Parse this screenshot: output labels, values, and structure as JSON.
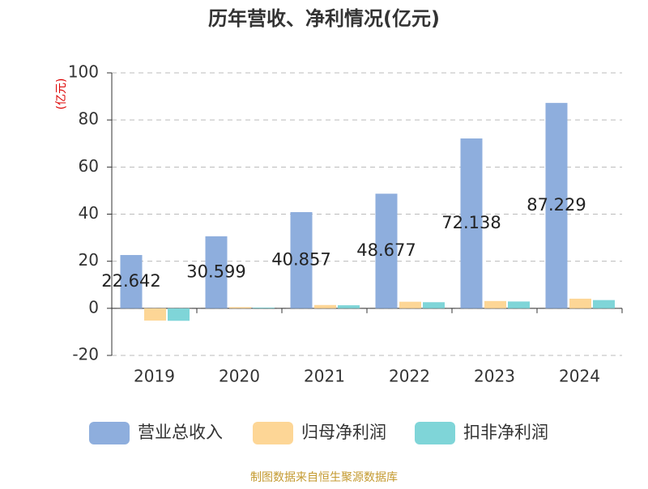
{
  "chart_data": {
    "type": "bar",
    "title": "历年营收、净利情况(亿元)",
    "y_axis_label": "(亿元)",
    "categories": [
      "2019",
      "2020",
      "2021",
      "2022",
      "2023",
      "2024"
    ],
    "series": [
      {
        "name": "营业总收入",
        "color": "#8eaedd",
        "values": [
          22.642,
          30.599,
          40.857,
          48.677,
          72.138,
          87.229
        ]
      },
      {
        "name": "归母净利润",
        "color": "#fdd696",
        "values": [
          -5.2,
          0.5,
          1.4,
          2.8,
          3.1,
          4.1
        ]
      },
      {
        "name": "扣非净利润",
        "color": "#7fd5d8",
        "values": [
          -5.3,
          0.3,
          1.3,
          2.6,
          2.9,
          3.5
        ]
      }
    ],
    "ylim": [
      -20,
      100
    ],
    "yticks": [
      -20,
      0,
      20,
      40,
      60,
      80,
      100
    ],
    "grid": true,
    "source": "制图数据来自恒生聚源数据库"
  }
}
